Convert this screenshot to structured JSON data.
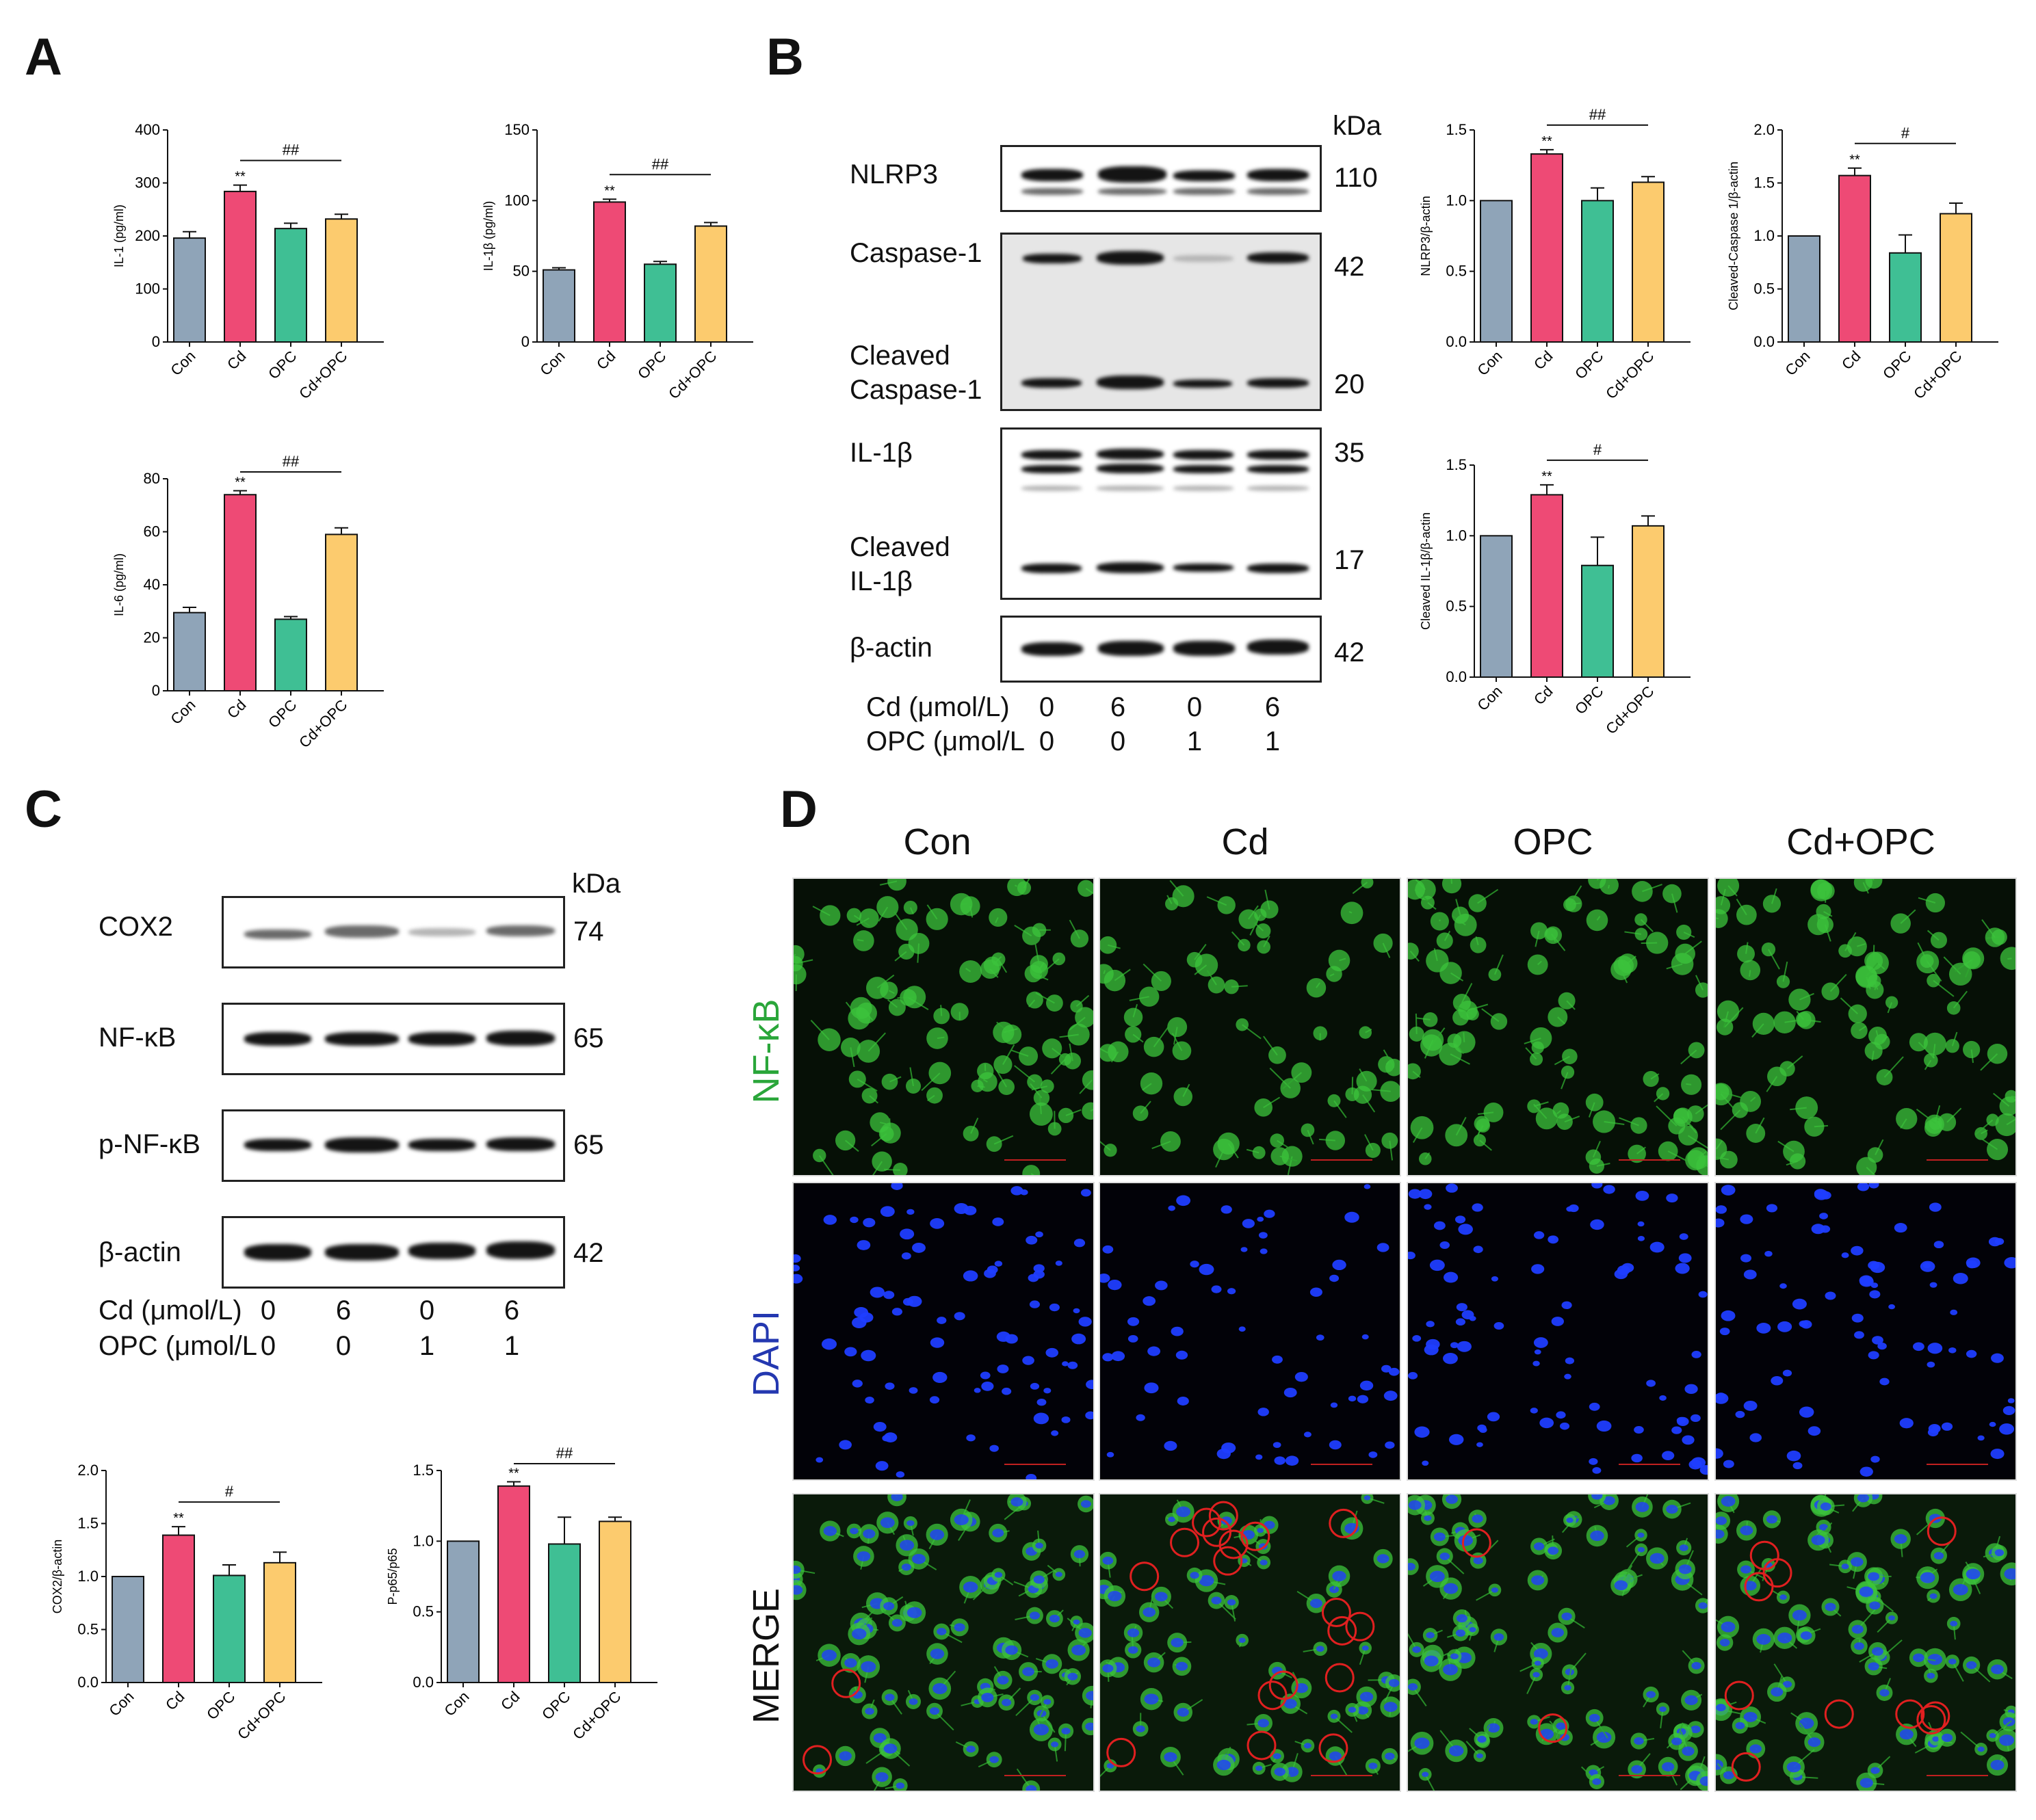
{
  "panels": {
    "A": "A",
    "B": "B",
    "C": "C",
    "D": "D"
  },
  "colors": {
    "Con": "#8fa4b8",
    "Cd": "#ee4a75",
    "OPC": "#3fbf94",
    "Cd+OPC": "#fccb6e"
  },
  "chart_data": [
    {
      "id": "il1",
      "type": "bar",
      "categories": [
        "Con",
        "Cd",
        "OPC",
        "Cd+OPC"
      ],
      "values": [
        196,
        284,
        214,
        232
      ],
      "errors": [
        12,
        12,
        10,
        9
      ],
      "ylabel": "IL-1 (pg/ml)",
      "ylim": [
        0,
        400
      ],
      "yticks": [
        "0",
        "100",
        "200",
        "300",
        "400"
      ],
      "star": "**",
      "star_index": 1,
      "sig_label": "##",
      "sig_from": 1,
      "sig_to": 3
    },
    {
      "id": "il1b",
      "type": "bar",
      "categories": [
        "Con",
        "Cd",
        "OPC",
        "Cd+OPC"
      ],
      "values": [
        51,
        99,
        55,
        82
      ],
      "errors": [
        1.5,
        2,
        2,
        2.5
      ],
      "ylabel": "IL-1β (pg/ml)",
      "ylim": [
        0,
        150
      ],
      "yticks": [
        "0",
        "50",
        "100",
        "150"
      ],
      "star": "**",
      "star_index": 1,
      "sig_label": "##",
      "sig_from": 1,
      "sig_to": 3
    },
    {
      "id": "il6",
      "type": "bar",
      "categories": [
        "Con",
        "Cd",
        "OPC",
        "Cd+OPC"
      ],
      "values": [
        29.5,
        74,
        27,
        59
      ],
      "errors": [
        2,
        1.5,
        1,
        2.5
      ],
      "ylabel": "IL-6 (pg/ml)",
      "ylim": [
        0,
        80
      ],
      "yticks": [
        "0",
        "20",
        "40",
        "60",
        "80"
      ],
      "star": "**",
      "star_index": 1,
      "sig_label": "##",
      "sig_from": 1,
      "sig_to": 3
    },
    {
      "id": "nlrp3",
      "type": "bar",
      "categories": [
        "Con",
        "Cd",
        "OPC",
        "Cd+OPC"
      ],
      "values": [
        1.0,
        1.33,
        1.0,
        1.13
      ],
      "errors": [
        0,
        0.03,
        0.09,
        0.04
      ],
      "ylabel": "NLRP3/β-actin",
      "ylim": [
        0,
        1.5
      ],
      "yticks": [
        "0.0",
        "0.5",
        "1.0",
        "1.5"
      ],
      "star": "**",
      "star_index": 1,
      "sig_label": "##",
      "sig_from": 1,
      "sig_to": 3
    },
    {
      "id": "casp1",
      "type": "bar",
      "categories": [
        "Con",
        "Cd",
        "OPC",
        "Cd+OPC"
      ],
      "values": [
        1.0,
        1.57,
        0.84,
        1.21
      ],
      "errors": [
        0,
        0.07,
        0.17,
        0.1
      ],
      "ylabel": "Cleaved-Caspase 1/β-actin",
      "ylim": [
        0,
        2.0
      ],
      "yticks": [
        "0.0",
        "0.5",
        "1.0",
        "1.5",
        "2.0"
      ],
      "star": "**",
      "star_index": 1,
      "sig_label": "#",
      "sig_from": 1,
      "sig_to": 3
    },
    {
      "id": "cleavedil1b",
      "type": "bar",
      "categories": [
        "Con",
        "Cd",
        "OPC",
        "Cd+OPC"
      ],
      "values": [
        1.0,
        1.29,
        0.79,
        1.07
      ],
      "errors": [
        0,
        0.07,
        0.2,
        0.07
      ],
      "ylabel": "Cleaved IL-1β/β-actin",
      "ylim": [
        0,
        1.5
      ],
      "yticks": [
        "0.0",
        "0.5",
        "1.0",
        "1.5"
      ],
      "star": "**",
      "star_index": 1,
      "sig_label": "#",
      "sig_from": 1,
      "sig_to": 3
    },
    {
      "id": "cox2",
      "type": "bar",
      "categories": [
        "Con",
        "Cd",
        "OPC",
        "Cd+OPC"
      ],
      "values": [
        1.0,
        1.39,
        1.01,
        1.13
      ],
      "errors": [
        0,
        0.08,
        0.1,
        0.1
      ],
      "ylabel": "COX2/β-actin",
      "ylim": [
        0,
        2.0
      ],
      "yticks": [
        "0.0",
        "0.5",
        "1.0",
        "1.5",
        "2.0"
      ],
      "star": "**",
      "star_index": 1,
      "sig_label": "#",
      "sig_from": 1,
      "sig_to": 3
    },
    {
      "id": "p65",
      "type": "bar",
      "categories": [
        "Con",
        "Cd",
        "OPC",
        "Cd+OPC"
      ],
      "values": [
        1.0,
        1.39,
        0.98,
        1.14
      ],
      "errors": [
        0,
        0.03,
        0.19,
        0.03
      ],
      "ylabel": "P-p65/p65",
      "ylim": [
        0,
        1.5
      ],
      "yticks": [
        "0.0",
        "0.5",
        "1.0",
        "1.5"
      ],
      "star": "**",
      "star_index": 1,
      "sig_label": "##",
      "sig_from": 1,
      "sig_to": 3
    }
  ],
  "blots_b": {
    "kda": "kDa",
    "labels": [
      "NLRP3",
      "Caspase-1",
      "Cleaved\nCaspase-1",
      "IL-1β",
      "Cleaved\nIL-1β",
      "β-actin"
    ],
    "weights": [
      "110",
      "42",
      "20",
      "35",
      "17",
      "42"
    ],
    "dose_cd_label": "Cd (μmol/L)",
    "dose_cd": [
      "0",
      "6",
      "0",
      "6"
    ],
    "dose_opc_label": "OPC (μmol/L",
    "dose_opc": [
      "0",
      "0",
      "1",
      "1"
    ]
  },
  "blots_c": {
    "kda": "kDa",
    "labels": [
      "COX2",
      "NF-κB",
      "p-NF-κB",
      "β-actin"
    ],
    "weights": [
      "74",
      "65",
      "65",
      "42"
    ],
    "dose_cd_label": "Cd (μmol/L)",
    "dose_cd": [
      "0",
      "6",
      "0",
      "6"
    ],
    "dose_opc_label": "OPC (μmol/L",
    "dose_opc": [
      "0",
      "0",
      "1",
      "1"
    ]
  },
  "ifc": {
    "columns": [
      "Con",
      "Cd",
      "OPC",
      "Cd+OPC"
    ],
    "rows": [
      "NF-κB",
      "DAPI",
      "MERGE"
    ],
    "row_colors": [
      "#2aa63a",
      "#2438b0",
      "#111111"
    ],
    "circle_counts": [
      2,
      18,
      2,
      10
    ]
  }
}
